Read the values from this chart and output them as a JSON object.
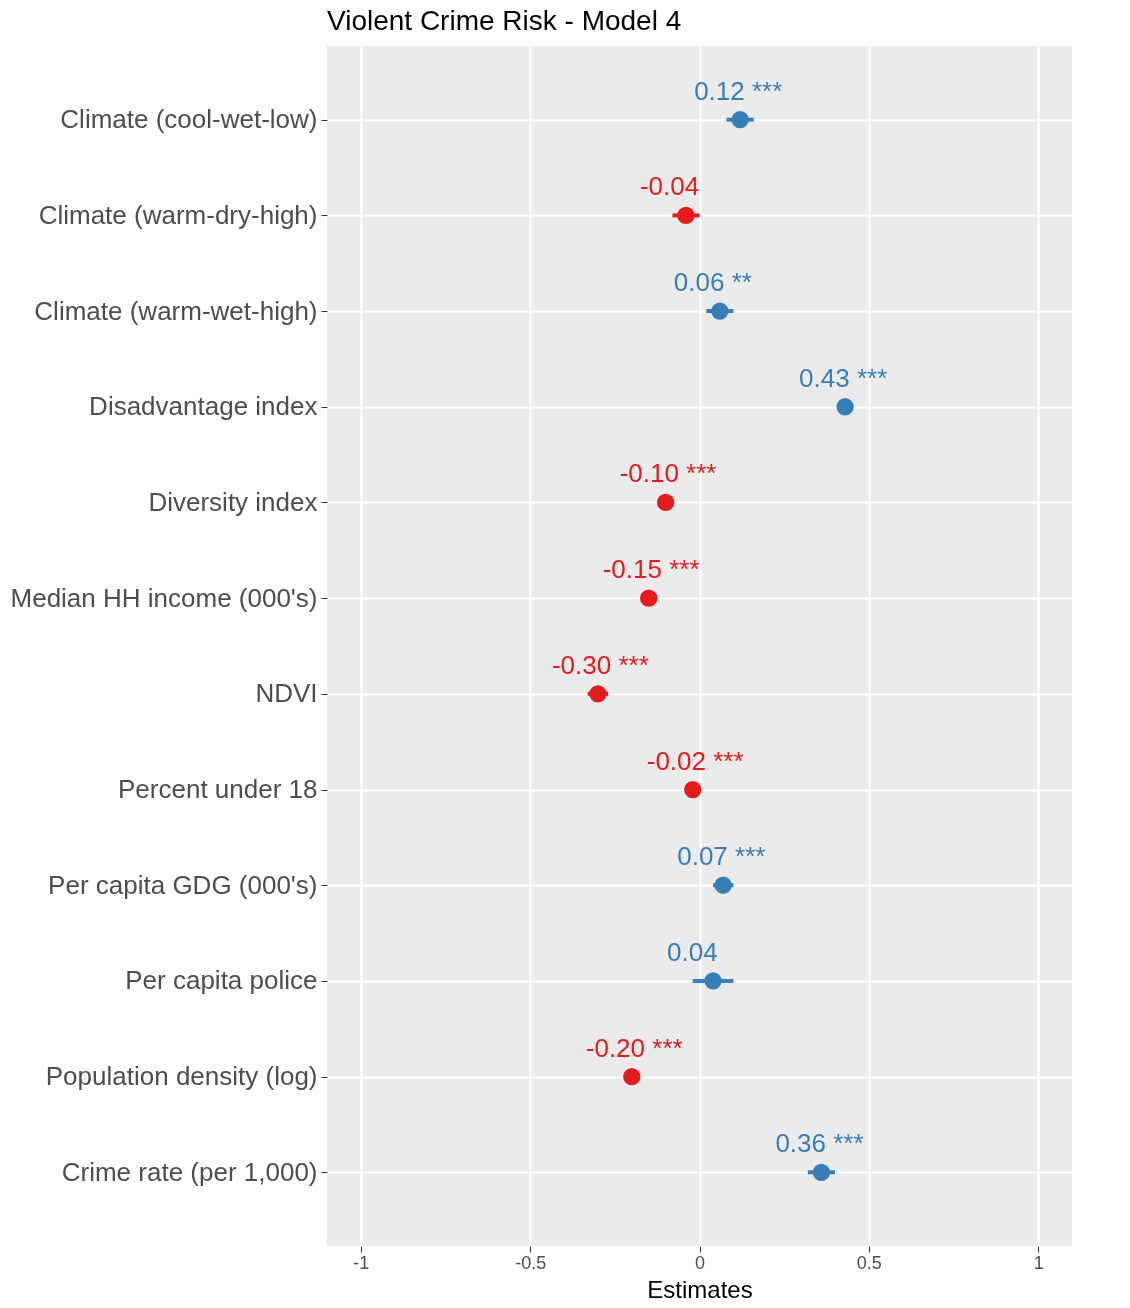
{
  "chart_data": {
    "type": "scatter",
    "orientation": "horizontal",
    "title": "Violent Crime Risk - Model 4",
    "xlabel": "Estimates",
    "categories": [
      "Climate (cool-wet-low)",
      "Climate (warm-dry-high)",
      "Climate (warm-wet-high)",
      "Disadvantage index",
      "Diversity index",
      "Median HH income (000's)",
      "NDVI",
      "Percent under 18",
      "Per capita GDG (000's)",
      "Per capita police",
      "Population density (log)",
      "Crime rate (per 1,000)"
    ],
    "values": [
      0.12,
      -0.04,
      0.06,
      0.43,
      -0.1,
      -0.15,
      -0.3,
      -0.02,
      0.07,
      0.04,
      -0.2,
      0.36
    ],
    "errors": [
      [
        0.08,
        0.16
      ],
      [
        -0.08,
        0
      ],
      [
        0.02,
        0.1
      ],
      null,
      null,
      null,
      [
        -0.33,
        -0.27
      ],
      null,
      [
        0.04,
        0.1
      ],
      [
        -0.02,
        0.1
      ],
      null,
      [
        0.32,
        0.4
      ]
    ],
    "value_labels": [
      "0.12 ***",
      "-0.04",
      "0.06 **",
      "0.43 ***",
      "-0.10 ***",
      "-0.15 ***",
      "-0.30 ***",
      "-0.02 ***",
      "0.07 ***",
      "0.04",
      "-0.20 ***",
      "0.36 ***"
    ],
    "colors": [
      "#377eb8",
      "#e41a1c",
      "#377eb8",
      "#377eb8",
      "#e41a1c",
      "#e41a1c",
      "#e41a1c",
      "#e41a1c",
      "#377eb8",
      "#377eb8",
      "#e41a1c",
      "#377eb8"
    ],
    "xlim": [
      -1.1,
      1.1
    ],
    "xticks": [
      -1,
      -0.5,
      0,
      0.5,
      1
    ],
    "grid": true,
    "marker": "circle"
  }
}
